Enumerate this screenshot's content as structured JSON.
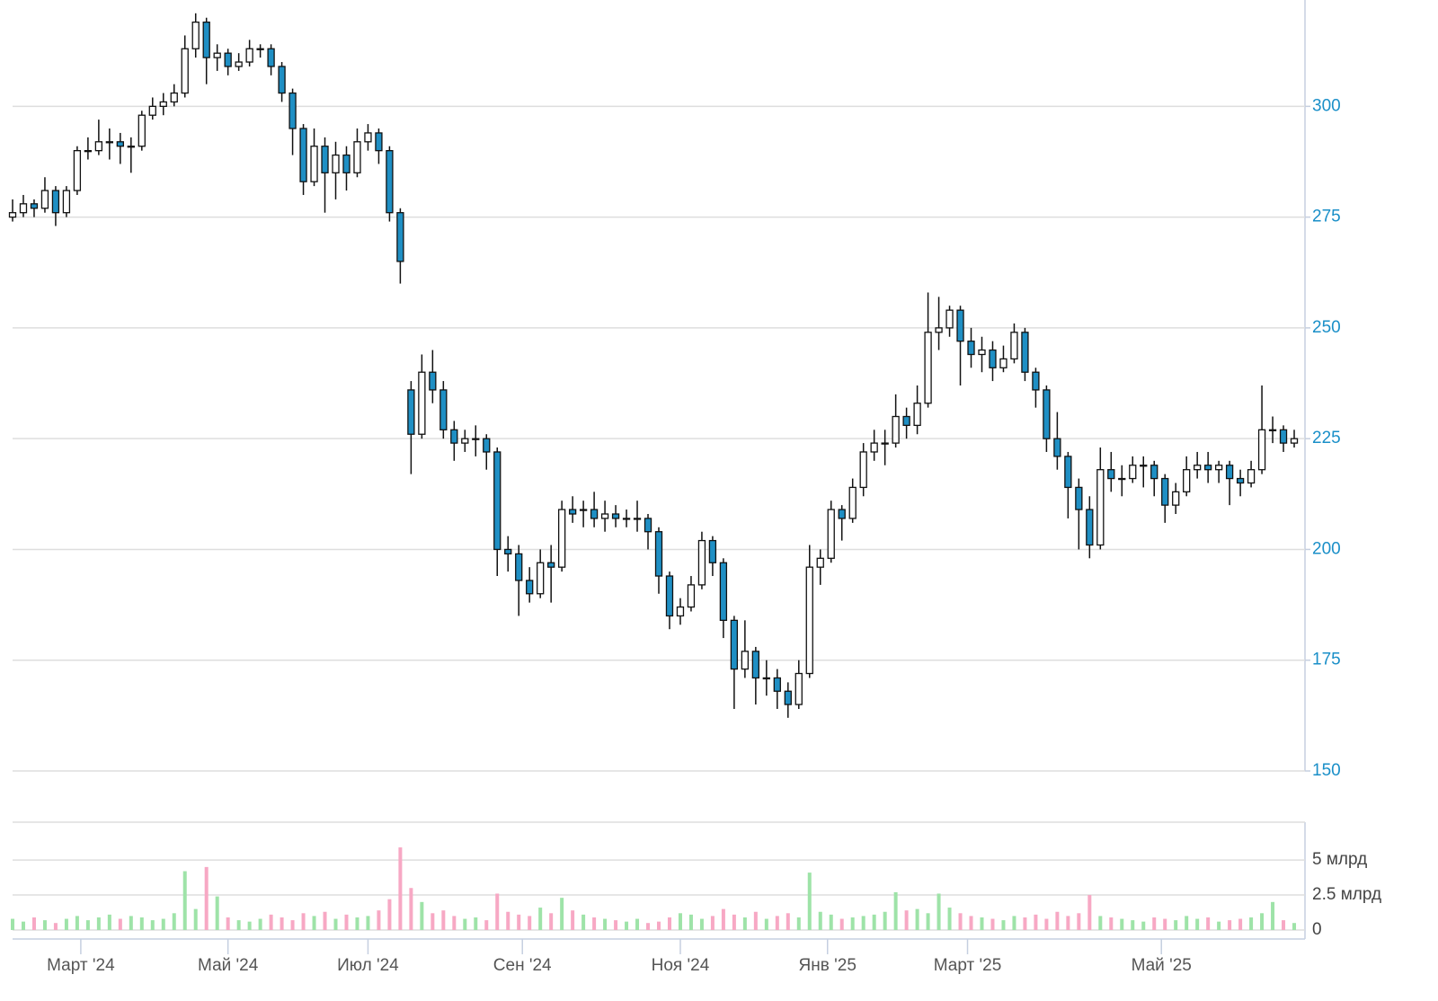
{
  "chart_data": [
    {
      "type": "candlestick",
      "x": [
        0,
        3,
        6,
        9,
        12,
        15,
        18,
        21,
        24,
        27,
        30,
        33,
        36,
        39,
        42,
        45,
        48,
        51,
        54,
        57,
        60,
        63,
        66,
        69,
        72,
        75,
        78,
        81,
        84,
        87,
        90,
        93,
        96,
        99,
        102,
        105,
        108,
        111,
        114,
        117,
        120,
        123,
        126,
        129,
        132,
        135,
        138,
        141,
        144,
        147,
        150,
        153,
        156,
        159,
        162,
        165,
        168,
        171,
        174,
        177,
        180,
        183,
        186,
        189,
        192,
        195,
        198,
        201,
        204,
        207,
        210,
        213,
        216,
        219,
        222,
        225,
        228,
        231,
        234,
        237,
        240,
        243,
        246,
        249,
        252,
        255,
        258,
        261,
        264,
        267,
        270,
        273,
        276,
        279,
        282,
        285,
        288,
        291,
        294,
        297,
        300,
        303,
        306,
        309,
        312,
        315,
        318,
        321,
        324,
        327,
        330,
        333,
        336,
        339,
        342,
        345,
        348,
        351,
        354,
        357
      ],
      "open": [
        275,
        276,
        278,
        277,
        281,
        276,
        281,
        290,
        290,
        292,
        292,
        291,
        291,
        298,
        300,
        301,
        303,
        313,
        319,
        311,
        312,
        309,
        310,
        313,
        313,
        309,
        303,
        295,
        283,
        291,
        285,
        289,
        285,
        292,
        294,
        290,
        276,
        236,
        226,
        240,
        236,
        227,
        224,
        225,
        225,
        222,
        200,
        199,
        193,
        190,
        197,
        196,
        209,
        209,
        209,
        207,
        208,
        207,
        207,
        207,
        204,
        194,
        185,
        187,
        192,
        202,
        197,
        184,
        173,
        177,
        171,
        171,
        168,
        165,
        172,
        196,
        198,
        209,
        207,
        214,
        222,
        224,
        224,
        230,
        228,
        233,
        249,
        250,
        254,
        247,
        244,
        245,
        241,
        243,
        249,
        240,
        236,
        225,
        221,
        214,
        209,
        201,
        218,
        216,
        216,
        219,
        219,
        216,
        210,
        213,
        218,
        219,
        218,
        219,
        216,
        215,
        218,
        227,
        227,
        224
      ],
      "high": [
        279,
        280,
        279,
        284,
        282,
        282,
        291,
        293,
        297,
        295,
        294,
        293,
        299,
        302,
        303,
        305,
        316,
        321,
        320,
        314,
        313,
        312,
        315,
        314,
        314,
        310,
        304,
        296,
        295,
        293,
        292,
        291,
        295,
        296,
        295,
        291,
        277,
        238,
        244,
        245,
        238,
        229,
        227,
        228,
        226,
        223,
        203,
        201,
        196,
        200,
        201,
        211,
        212,
        211,
        213,
        211,
        210,
        209,
        211,
        208,
        205,
        195,
        189,
        194,
        204,
        203,
        198,
        185,
        184,
        178,
        175,
        173,
        170,
        175,
        201,
        200,
        211,
        210,
        216,
        224,
        227,
        227,
        235,
        232,
        237,
        258,
        257,
        255,
        255,
        250,
        248,
        247,
        246,
        251,
        250,
        241,
        237,
        231,
        222,
        216,
        212,
        223,
        222,
        219,
        221,
        221,
        220,
        217,
        215,
        221,
        222,
        222,
        220,
        220,
        218,
        220,
        237,
        230,
        228,
        227
      ],
      "low": [
        274,
        275,
        275,
        276,
        273,
        275,
        280,
        288,
        289,
        288,
        287,
        285,
        290,
        297,
        298,
        300,
        302,
        311,
        305,
        308,
        307,
        308,
        309,
        311,
        307,
        301,
        289,
        280,
        282,
        276,
        279,
        281,
        284,
        290,
        287,
        274,
        260,
        217,
        225,
        233,
        225,
        220,
        222,
        221,
        218,
        194,
        195,
        185,
        188,
        189,
        188,
        195,
        206,
        205,
        205,
        204,
        205,
        205,
        204,
        200,
        190,
        182,
        183,
        186,
        191,
        194,
        180,
        164,
        171,
        165,
        167,
        164,
        162,
        164,
        171,
        192,
        197,
        202,
        206,
        212,
        220,
        219,
        223,
        225,
        226,
        232,
        245,
        248,
        237,
        241,
        240,
        238,
        240,
        242,
        238,
        232,
        222,
        218,
        207,
        200,
        198,
        200,
        213,
        212,
        215,
        214,
        212,
        206,
        208,
        212,
        216,
        215,
        215,
        210,
        212,
        214,
        217,
        224,
        222,
        223
      ],
      "close": [
        276,
        278,
        277,
        281,
        276,
        281,
        290,
        290,
        292,
        292,
        291,
        291,
        298,
        300,
        301,
        303,
        313,
        319,
        311,
        312,
        309,
        310,
        313,
        313,
        309,
        303,
        295,
        283,
        291,
        285,
        289,
        285,
        292,
        294,
        290,
        276,
        265,
        226,
        240,
        236,
        227,
        224,
        225,
        225,
        222,
        200,
        199,
        193,
        190,
        197,
        196,
        209,
        208,
        209,
        207,
        208,
        207,
        207,
        207,
        204,
        194,
        185,
        187,
        192,
        202,
        197,
        184,
        173,
        177,
        171,
        171,
        168,
        165,
        172,
        196,
        198,
        209,
        207,
        214,
        222,
        224,
        224,
        230,
        228,
        233,
        249,
        250,
        254,
        247,
        244,
        245,
        241,
        243,
        249,
        240,
        236,
        225,
        221,
        214,
        209,
        201,
        218,
        216,
        216,
        219,
        219,
        216,
        210,
        213,
        218,
        219,
        218,
        219,
        216,
        215,
        218,
        227,
        227,
        224,
        225
      ],
      "up_color": "#ffffff",
      "down_color": "#1f8fc4",
      "outline_color": "#111111",
      "xlim": [
        0,
        360
      ],
      "xticks": [
        {
          "value": 19,
          "label": "Март '24"
        },
        {
          "value": 60,
          "label": "Май '24"
        },
        {
          "value": 99,
          "label": "Июл '24"
        },
        {
          "value": 142,
          "label": "Сен '24"
        },
        {
          "value": 186,
          "label": "Ноя '24"
        },
        {
          "value": 227,
          "label": "Янв '25"
        },
        {
          "value": 266,
          "label": "Март '25"
        },
        {
          "value": 320,
          "label": "Май '25"
        }
      ],
      "ylim": [
        150,
        324
      ],
      "yticks": [
        150,
        175,
        200,
        225,
        250,
        275,
        300
      ],
      "grid": true
    },
    {
      "type": "bar",
      "values": [
        0.8,
        0.6,
        0.9,
        0.7,
        0.5,
        0.8,
        1.0,
        0.7,
        0.9,
        1.1,
        0.8,
        1.0,
        0.9,
        0.7,
        0.8,
        1.2,
        4.2,
        1.5,
        4.5,
        2.4,
        0.9,
        0.7,
        0.6,
        0.8,
        1.1,
        0.9,
        0.7,
        1.2,
        1.0,
        1.3,
        0.8,
        1.1,
        0.9,
        1.0,
        1.4,
        2.2,
        5.9,
        3.0,
        2.0,
        1.2,
        1.4,
        1.0,
        0.8,
        0.9,
        0.7,
        2.6,
        1.3,
        1.1,
        1.0,
        1.6,
        1.2,
        2.3,
        1.4,
        1.1,
        0.9,
        0.8,
        0.7,
        0.6,
        0.8,
        0.5,
        0.6,
        0.9,
        1.2,
        1.1,
        0.8,
        1.0,
        1.5,
        1.1,
        0.9,
        1.3,
        0.8,
        1.0,
        1.2,
        0.9,
        4.1,
        1.3,
        1.1,
        0.8,
        0.9,
        1.0,
        1.1,
        1.3,
        2.7,
        1.4,
        1.5,
        1.2,
        2.6,
        1.6,
        1.2,
        1.0,
        0.9,
        0.8,
        0.7,
        1.0,
        0.9,
        1.1,
        0.8,
        1.3,
        1.0,
        1.2,
        2.5,
        1.0,
        0.9,
        0.8,
        0.7,
        0.6,
        0.9,
        0.8,
        0.7,
        1.0,
        0.8,
        0.9,
        0.6,
        0.7,
        0.8,
        0.9,
        1.2,
        2.0,
        0.7,
        0.5
      ],
      "up_color": "#9ee3a8",
      "down_color": "#f7a8c4",
      "ylim": [
        0,
        7.7
      ],
      "yticks": [
        0,
        {
          "value": 2.5,
          "label": "2.5 млрд"
        },
        {
          "value": 5,
          "label": "5 млрд"
        }
      ],
      "grid": true
    }
  ]
}
